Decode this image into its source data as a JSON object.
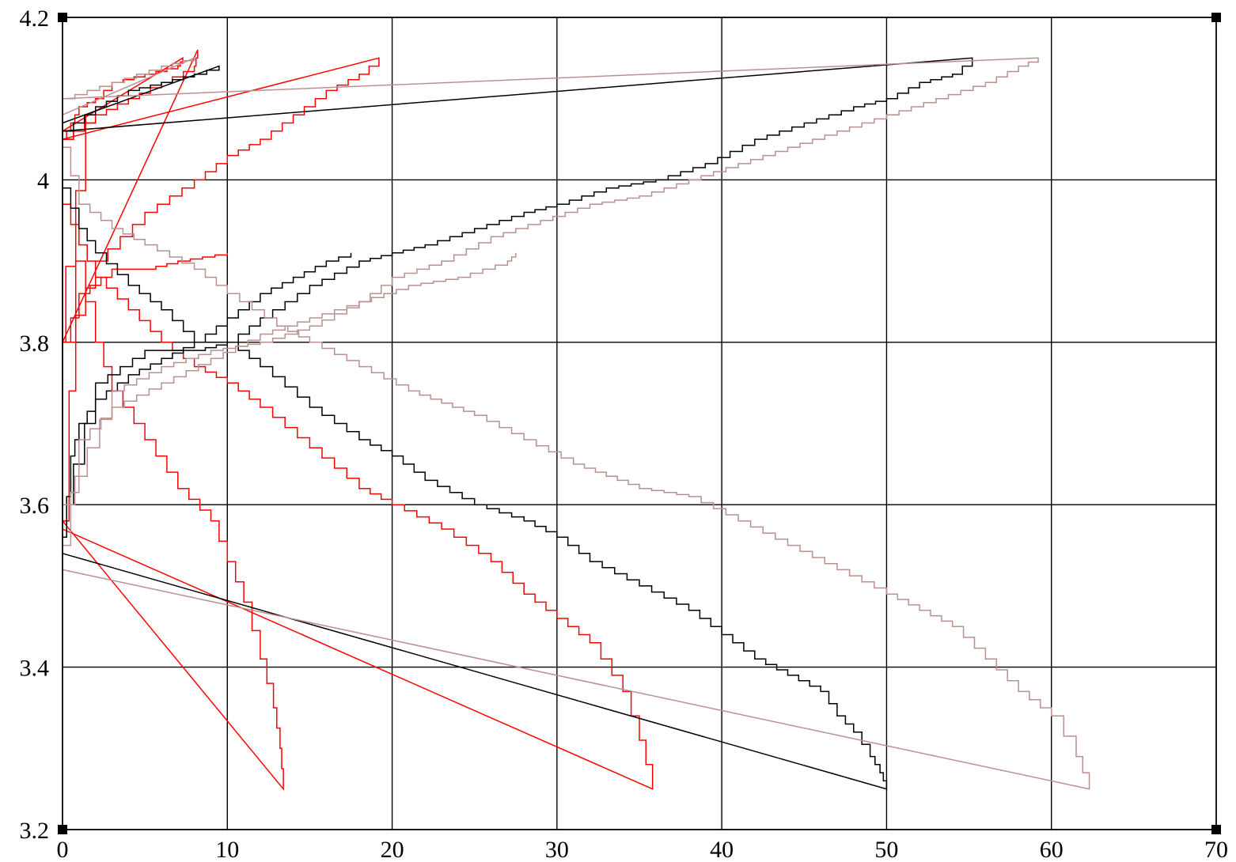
{
  "chart_data": {
    "type": "line",
    "title": "",
    "xlabel": "",
    "ylabel": "",
    "xlim": [
      0,
      70
    ],
    "ylim": [
      3.2,
      4.2
    ],
    "x_ticks": [
      "0",
      "10",
      "20",
      "30",
      "40",
      "50",
      "60",
      "70"
    ],
    "y_ticks": [
      "3.2",
      "3.4",
      "3.6",
      "3.8",
      "4",
      "4.2"
    ],
    "grid": true,
    "legend": "none",
    "colors": {
      "black": "#000000",
      "red": "#ff0000",
      "rosy": "#bc8f8f"
    },
    "series": [
      {
        "color": "#ff0000",
        "points": [
          [
            0,
            4.05
          ],
          [
            0.5,
            4.07
          ],
          [
            1,
            4.09
          ],
          [
            2,
            4.1
          ],
          [
            3,
            4.12
          ],
          [
            5,
            4.13
          ],
          [
            7,
            4.14
          ],
          [
            7.3,
            4.15
          ],
          [
            0,
            4.06
          ],
          [
            0,
            3.58
          ],
          [
            0.8,
            3.9
          ],
          [
            2,
            3.8
          ],
          [
            3,
            3.74
          ],
          [
            5,
            3.68
          ],
          [
            7,
            3.62
          ],
          [
            9,
            3.58
          ],
          [
            10,
            3.53
          ],
          [
            11,
            3.48
          ],
          [
            12,
            3.41
          ],
          [
            12.8,
            3.35
          ],
          [
            13.2,
            3.3
          ],
          [
            13.4,
            3.25
          ],
          [
            0,
            3.58
          ]
        ]
      },
      {
        "color": "#ff0000",
        "points": [
          [
            0,
            4.05
          ],
          [
            2,
            4.08
          ],
          [
            4,
            4.1
          ],
          [
            6,
            4.12
          ],
          [
            8,
            4.14
          ],
          [
            8.2,
            4.16
          ],
          [
            0,
            3.8
          ],
          [
            1,
            3.86
          ],
          [
            3,
            3.89
          ],
          [
            5,
            3.89
          ],
          [
            7,
            3.9
          ],
          [
            10,
            3.91
          ]
        ]
      },
      {
        "color": "#ff0000",
        "points": [
          [
            0,
            3.97
          ],
          [
            1,
            3.92
          ],
          [
            2,
            3.88
          ],
          [
            4,
            3.84
          ],
          [
            6,
            3.8
          ],
          [
            8,
            3.77
          ],
          [
            10,
            3.75
          ],
          [
            12,
            3.72
          ],
          [
            15,
            3.67
          ],
          [
            18,
            3.62
          ],
          [
            20,
            3.6
          ],
          [
            23,
            3.57
          ],
          [
            26,
            3.53
          ],
          [
            28,
            3.49
          ],
          [
            30,
            3.46
          ],
          [
            32,
            3.43
          ],
          [
            34,
            3.37
          ],
          [
            35,
            3.31
          ],
          [
            35.8,
            3.25
          ],
          [
            0,
            3.57
          ]
        ]
      },
      {
        "color": "#ff0000",
        "points": [
          [
            0,
            4.05
          ],
          [
            2,
            4.08
          ],
          [
            0.2,
            3.8
          ],
          [
            2,
            3.9
          ],
          [
            5,
            3.96
          ],
          [
            8,
            4.0
          ],
          [
            10,
            4.03
          ],
          [
            12,
            4.05
          ],
          [
            14,
            4.08
          ],
          [
            16,
            4.11
          ],
          [
            18,
            4.13
          ],
          [
            19.2,
            4.15
          ],
          [
            0,
            4.05
          ]
        ]
      },
      {
        "color": "#000000",
        "points": [
          [
            0,
            3.56
          ],
          [
            0.5,
            3.66
          ],
          [
            1,
            3.7
          ],
          [
            2,
            3.73
          ],
          [
            4,
            3.76
          ],
          [
            6,
            3.78
          ],
          [
            8,
            3.8
          ],
          [
            10,
            3.83
          ],
          [
            12,
            3.86
          ],
          [
            14,
            3.88
          ],
          [
            16,
            3.9
          ],
          [
            17.5,
            3.91
          ]
        ]
      },
      {
        "color": "#000000",
        "points": [
          [
            0,
            3.99
          ],
          [
            1,
            3.94
          ],
          [
            2,
            3.91
          ],
          [
            4,
            3.87
          ],
          [
            6,
            3.84
          ],
          [
            8,
            3.8
          ],
          [
            10,
            3.8
          ],
          [
            12,
            3.77
          ],
          [
            15,
            3.72
          ],
          [
            18,
            3.68
          ],
          [
            20,
            3.66
          ],
          [
            22,
            3.63
          ],
          [
            25,
            3.6
          ],
          [
            28,
            3.58
          ],
          [
            30,
            3.56
          ],
          [
            32,
            3.53
          ],
          [
            35,
            3.5
          ],
          [
            38,
            3.47
          ],
          [
            40,
            3.44
          ],
          [
            42,
            3.41
          ],
          [
            44,
            3.39
          ],
          [
            46,
            3.37
          ],
          [
            47,
            3.34
          ],
          [
            48,
            3.32
          ],
          [
            49,
            3.29
          ],
          [
            49.6,
            3.27
          ],
          [
            50,
            3.25
          ],
          [
            0,
            3.54
          ]
        ]
      },
      {
        "color": "#000000",
        "points": [
          [
            0,
            4.06
          ],
          [
            2,
            4.09
          ],
          [
            4,
            4.11
          ],
          [
            6,
            4.12
          ],
          [
            8,
            4.13
          ],
          [
            9.5,
            4.14
          ],
          [
            0,
            4.07
          ],
          [
            0,
            3.6
          ],
          [
            2,
            3.75
          ],
          [
            5,
            3.79
          ],
          [
            8,
            3.79
          ],
          [
            10,
            3.8
          ],
          [
            12,
            3.83
          ],
          [
            15,
            3.87
          ],
          [
            18,
            3.9
          ],
          [
            20,
            3.91
          ],
          [
            22,
            3.92
          ],
          [
            25,
            3.94
          ],
          [
            28,
            3.96
          ],
          [
            30,
            3.97
          ],
          [
            33,
            3.99
          ],
          [
            36,
            4.0
          ],
          [
            39,
            4.02
          ],
          [
            42,
            4.05
          ],
          [
            45,
            4.07
          ],
          [
            48,
            4.09
          ],
          [
            50,
            4.1
          ],
          [
            52,
            4.12
          ],
          [
            54,
            4.13
          ],
          [
            55.2,
            4.15
          ],
          [
            0,
            4.06
          ]
        ]
      },
      {
        "color": "#bc8f8f",
        "points": [
          [
            0,
            3.55
          ],
          [
            1,
            3.68
          ],
          [
            3,
            3.72
          ],
          [
            6,
            3.75
          ],
          [
            9,
            3.78
          ],
          [
            12,
            3.81
          ],
          [
            15,
            3.83
          ],
          [
            18,
            3.85
          ],
          [
            21,
            3.87
          ],
          [
            24,
            3.88
          ],
          [
            27,
            3.9
          ],
          [
            27.5,
            3.91
          ]
        ]
      },
      {
        "color": "#bc8f8f",
        "points": [
          [
            0,
            4.04
          ],
          [
            1,
            3.97
          ],
          [
            3,
            3.94
          ],
          [
            5,
            3.92
          ],
          [
            8,
            3.89
          ],
          [
            10,
            3.86
          ],
          [
            13,
            3.82
          ],
          [
            15,
            3.8
          ],
          [
            18,
            3.77
          ],
          [
            21,
            3.74
          ],
          [
            25,
            3.71
          ],
          [
            28,
            3.68
          ],
          [
            31,
            3.65
          ],
          [
            35,
            3.62
          ],
          [
            38,
            3.61
          ],
          [
            41,
            3.58
          ],
          [
            44,
            3.55
          ],
          [
            47,
            3.52
          ],
          [
            50,
            3.49
          ],
          [
            52,
            3.47
          ],
          [
            54,
            3.45
          ],
          [
            56,
            3.41
          ],
          [
            58,
            3.37
          ],
          [
            60,
            3.34
          ],
          [
            61.5,
            3.29
          ],
          [
            62.3,
            3.25
          ],
          [
            0,
            3.52
          ]
        ]
      },
      {
        "color": "#bc8f8f",
        "points": [
          [
            0,
            4.1
          ],
          [
            3,
            4.12
          ],
          [
            6,
            4.14
          ],
          [
            8,
            4.15
          ],
          [
            0,
            4.08
          ],
          [
            0,
            3.6
          ],
          [
            3,
            3.74
          ],
          [
            6,
            3.77
          ],
          [
            9,
            3.79
          ],
          [
            12,
            3.8
          ],
          [
            15,
            3.82
          ],
          [
            18,
            3.85
          ],
          [
            20,
            3.88
          ],
          [
            23,
            3.9
          ],
          [
            26,
            3.93
          ],
          [
            29,
            3.95
          ],
          [
            32,
            3.97
          ],
          [
            35,
            3.98
          ],
          [
            38,
            4.0
          ],
          [
            41,
            4.02
          ],
          [
            44,
            4.04
          ],
          [
            47,
            4.06
          ],
          [
            50,
            4.08
          ],
          [
            53,
            4.1
          ],
          [
            56,
            4.12
          ],
          [
            58,
            4.14
          ],
          [
            59.2,
            4.15
          ],
          [
            0,
            4.1
          ]
        ]
      }
    ]
  }
}
